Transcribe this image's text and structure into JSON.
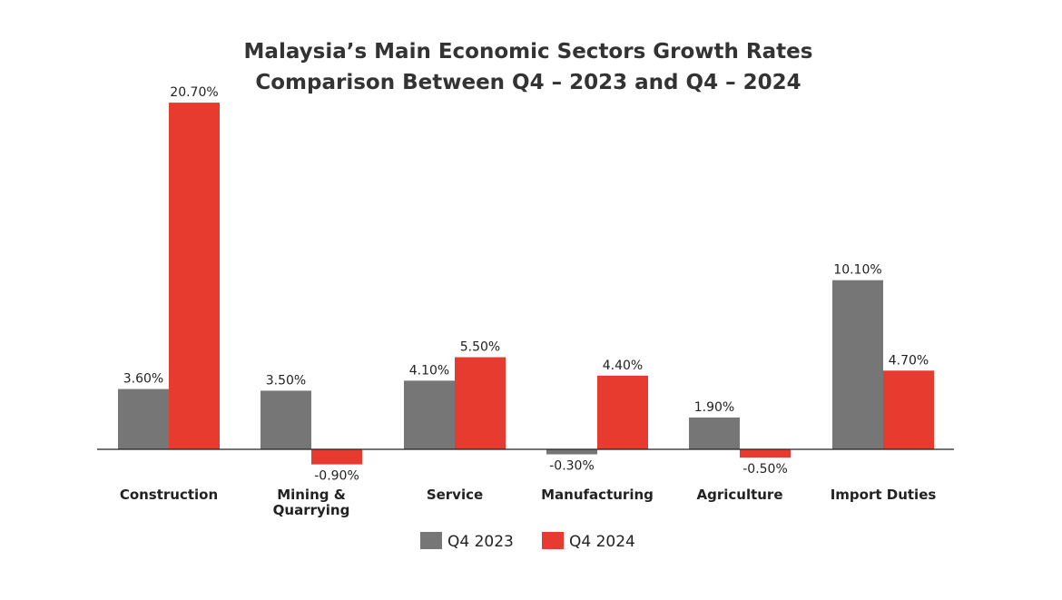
{
  "chart_data": {
    "type": "bar",
    "title_lines": [
      "Malaysia’s Main Economic Sectors Growth Rates",
      "Comparison Between Q4 – 2023 and Q4 – 2024"
    ],
    "categories": [
      [
        "Construction"
      ],
      [
        "Mining &",
        "Quarrying"
      ],
      [
        "Service"
      ],
      [
        "Manufacturing"
      ],
      [
        "Agriculture"
      ],
      [
        "Import Duties"
      ]
    ],
    "series": [
      {
        "name": "Q4 2023",
        "color": "#767676",
        "values": [
          3.6,
          3.5,
          4.1,
          -0.3,
          1.9,
          10.1
        ],
        "labels": [
          "3.60%",
          "3.50%",
          "4.10%",
          "-0.30%",
          "1.90%",
          "10.10%"
        ]
      },
      {
        "name": "Q4 2024",
        "color": "#e63b2e",
        "values": [
          20.7,
          -0.9,
          5.5,
          4.4,
          -0.5,
          4.7
        ],
        "labels": [
          "20.70%",
          "-0.90%",
          "5.50%",
          "4.40%",
          "-0.50%",
          "4.70%"
        ]
      }
    ],
    "xlabel": "",
    "ylabel": "",
    "grid": false,
    "legend": "bottom"
  }
}
